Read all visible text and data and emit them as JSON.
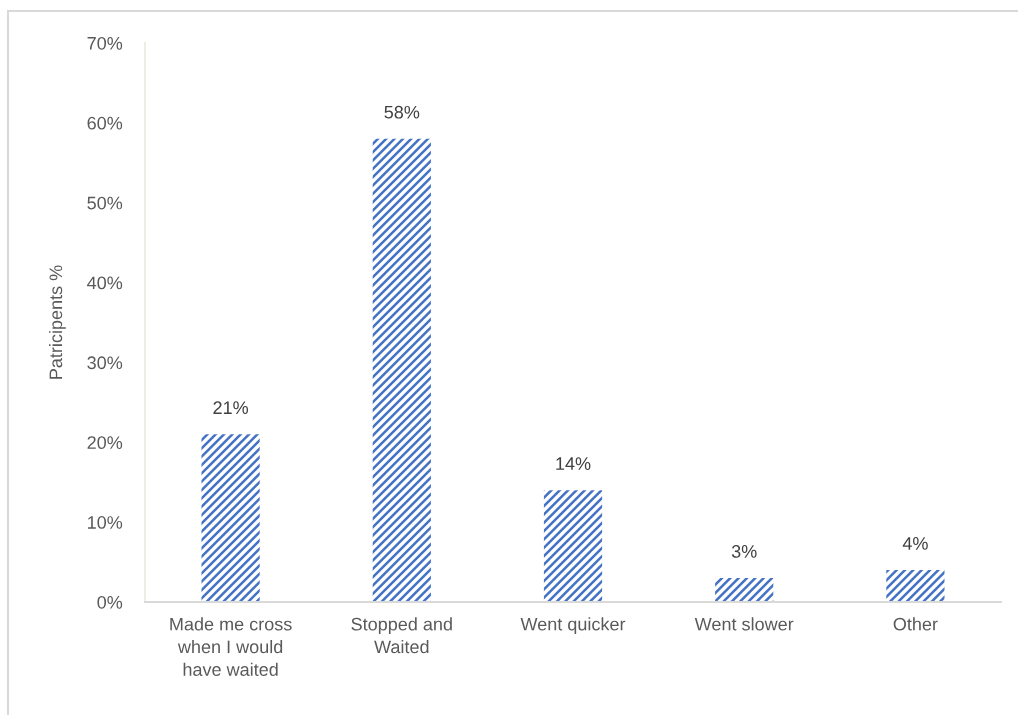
{
  "chart_data": {
    "type": "bar",
    "ylabel": "Patricipents %",
    "categories": [
      "Made me cross\nwhen I would\nhave waited",
      "Stopped and\nWaited",
      "Went quicker",
      "Went slower",
      "Other"
    ],
    "values": [
      21,
      58,
      14,
      3,
      4
    ],
    "color": "#4472c4",
    "value_labels": [
      "21%",
      "58%",
      "14%",
      "3%",
      "4%"
    ],
    "ylim": [
      0,
      70
    ],
    "yticks": [
      {
        "value": 0,
        "label": "0%"
      },
      {
        "value": 10,
        "label": "10%"
      },
      {
        "value": 20,
        "label": "20%"
      },
      {
        "value": 30,
        "label": "30%"
      },
      {
        "value": 40,
        "label": "40%"
      },
      {
        "value": 50,
        "label": "50%"
      },
      {
        "value": 60,
        "label": "60%"
      },
      {
        "value": 70,
        "label": "70%"
      }
    ]
  }
}
